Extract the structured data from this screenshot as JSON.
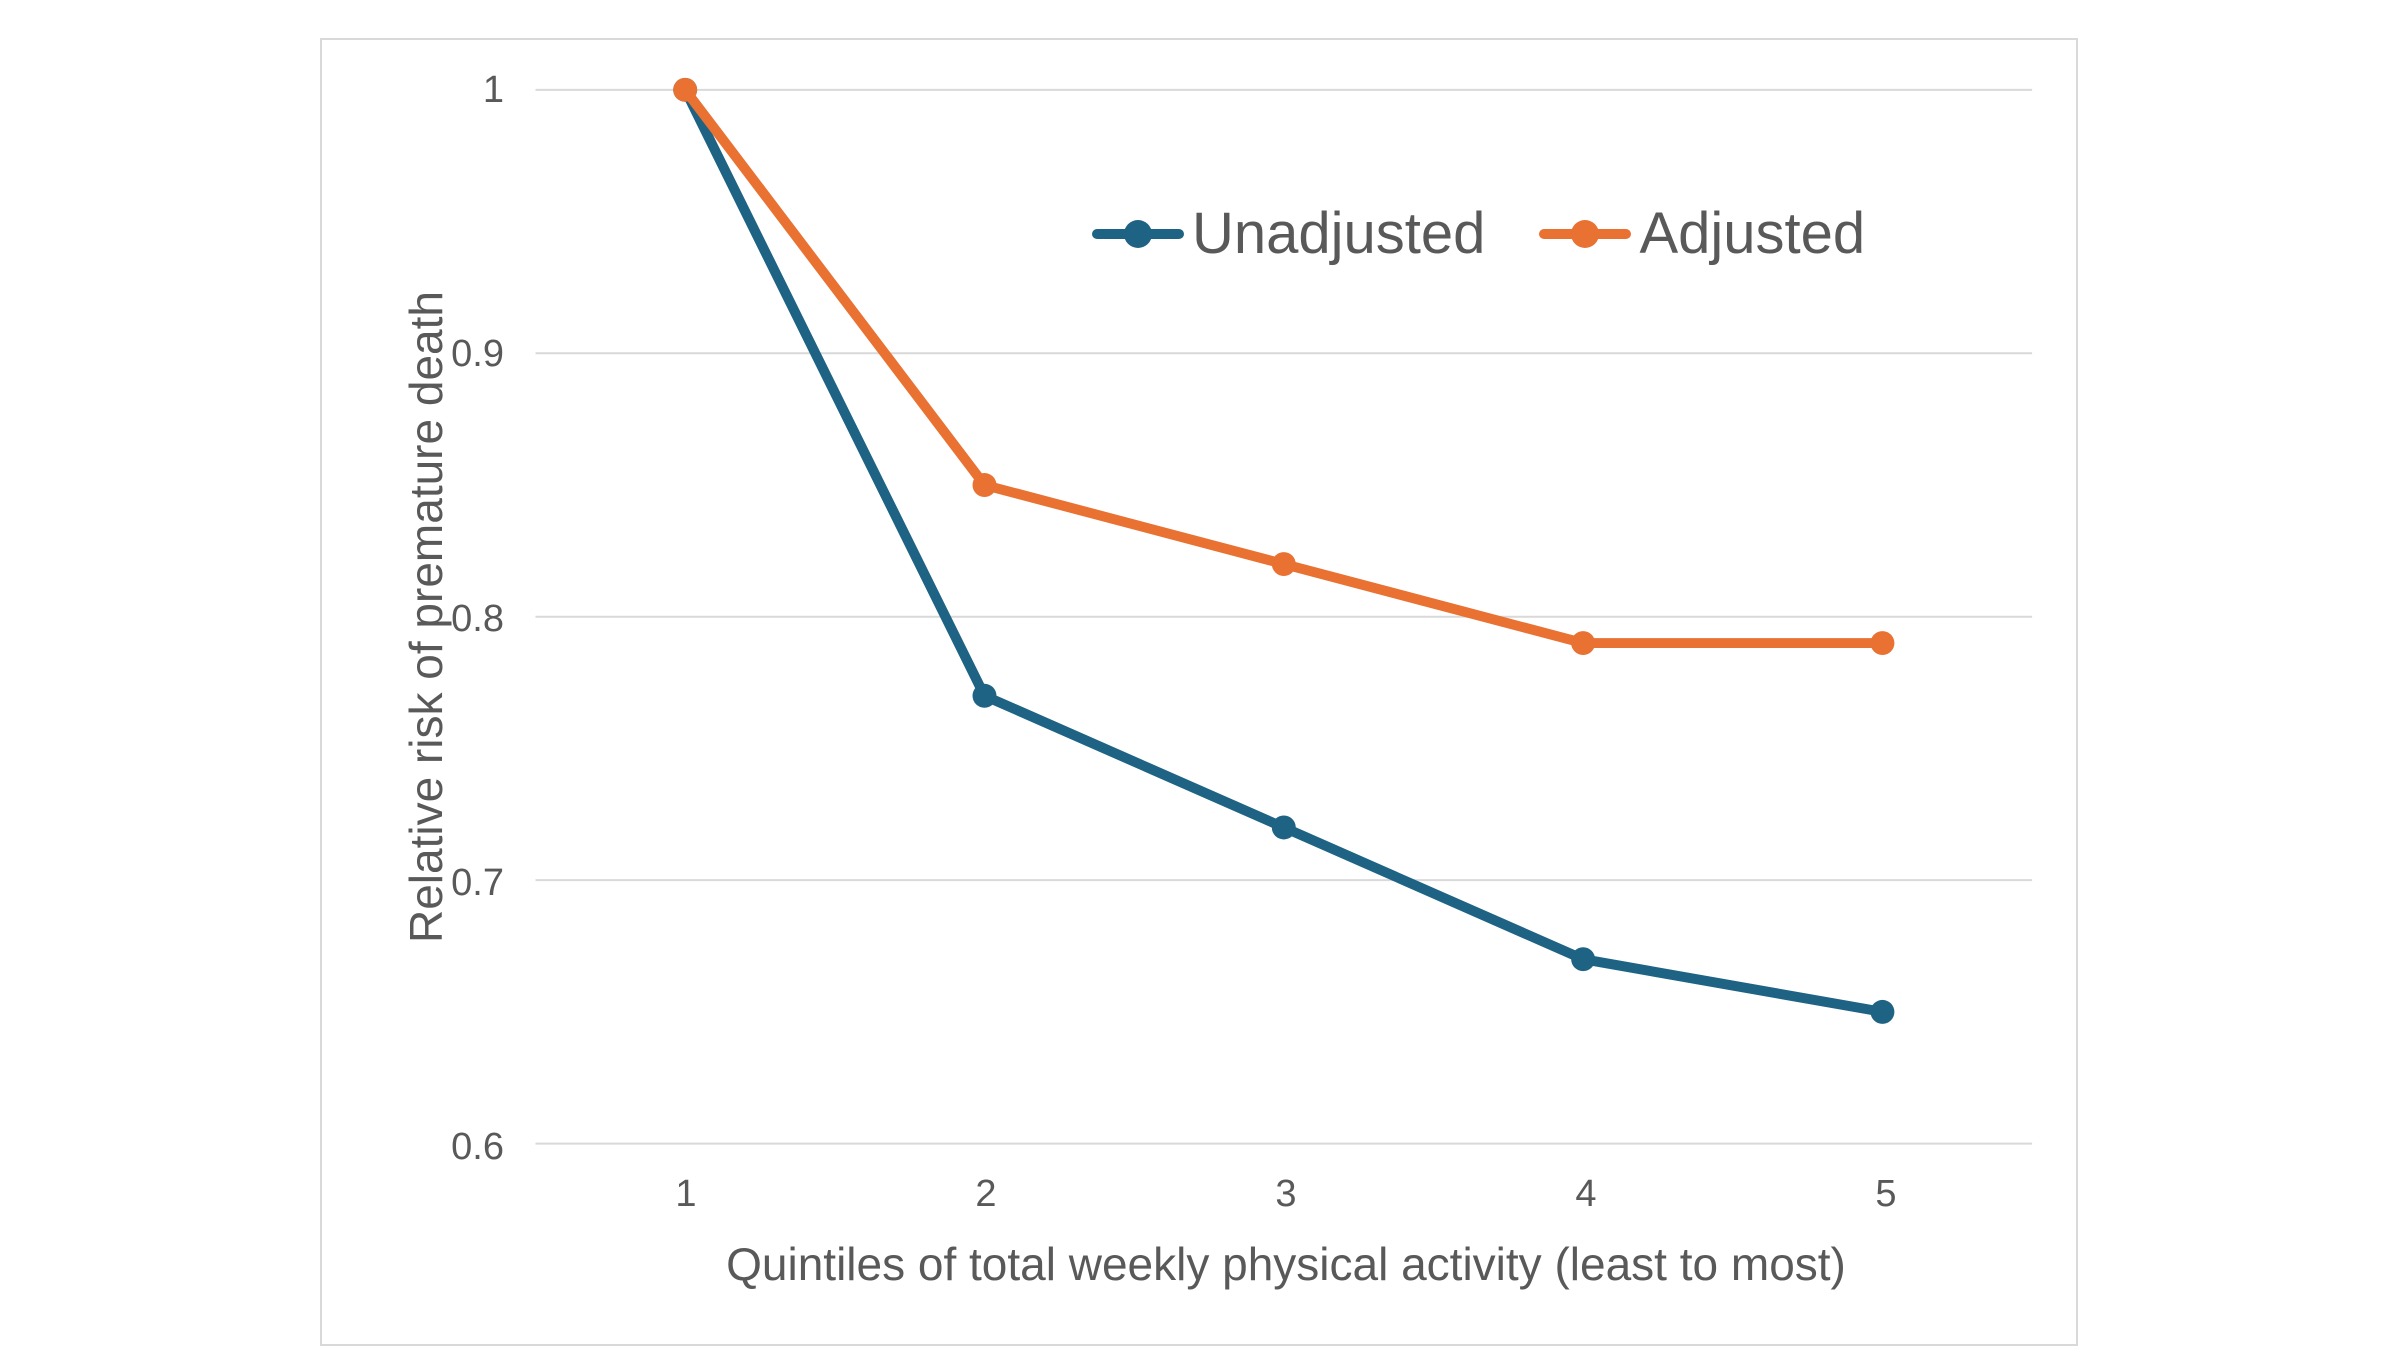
{
  "colors": {
    "background": "#FFFFFF",
    "card_border": "#D9D9D9",
    "gridline": "#D9D9D9",
    "text": "#595959",
    "series_unadjusted": "#1E6384",
    "series_adjusted": "#E97132"
  },
  "chart_data": {
    "type": "line",
    "title": "",
    "xlabel": "Quintiles of total weekly physical activity (least to most)",
    "ylabel": "Relative risk of premature death",
    "categories": [
      1,
      2,
      3,
      4,
      5
    ],
    "xtick_labels": [
      "1",
      "2",
      "3",
      "4",
      "5"
    ],
    "series": [
      {
        "name": "Unadjusted",
        "color": "#1E6384",
        "values": [
          1.0,
          0.77,
          0.72,
          0.67,
          0.65
        ]
      },
      {
        "name": "Adjusted",
        "color": "#E97132",
        "values": [
          1.0,
          0.85,
          0.82,
          0.79,
          0.79
        ]
      }
    ],
    "ylim": [
      0.6,
      1.0
    ],
    "ytick_values": [
      1,
      0.9,
      0.8,
      0.7,
      0.6
    ],
    "ytick_labels": [
      "1",
      "0.9",
      "0.8",
      "0.7",
      "0.6"
    ],
    "grid": "horizontal",
    "legend_position": "inside-top-right",
    "marker": "circle"
  }
}
